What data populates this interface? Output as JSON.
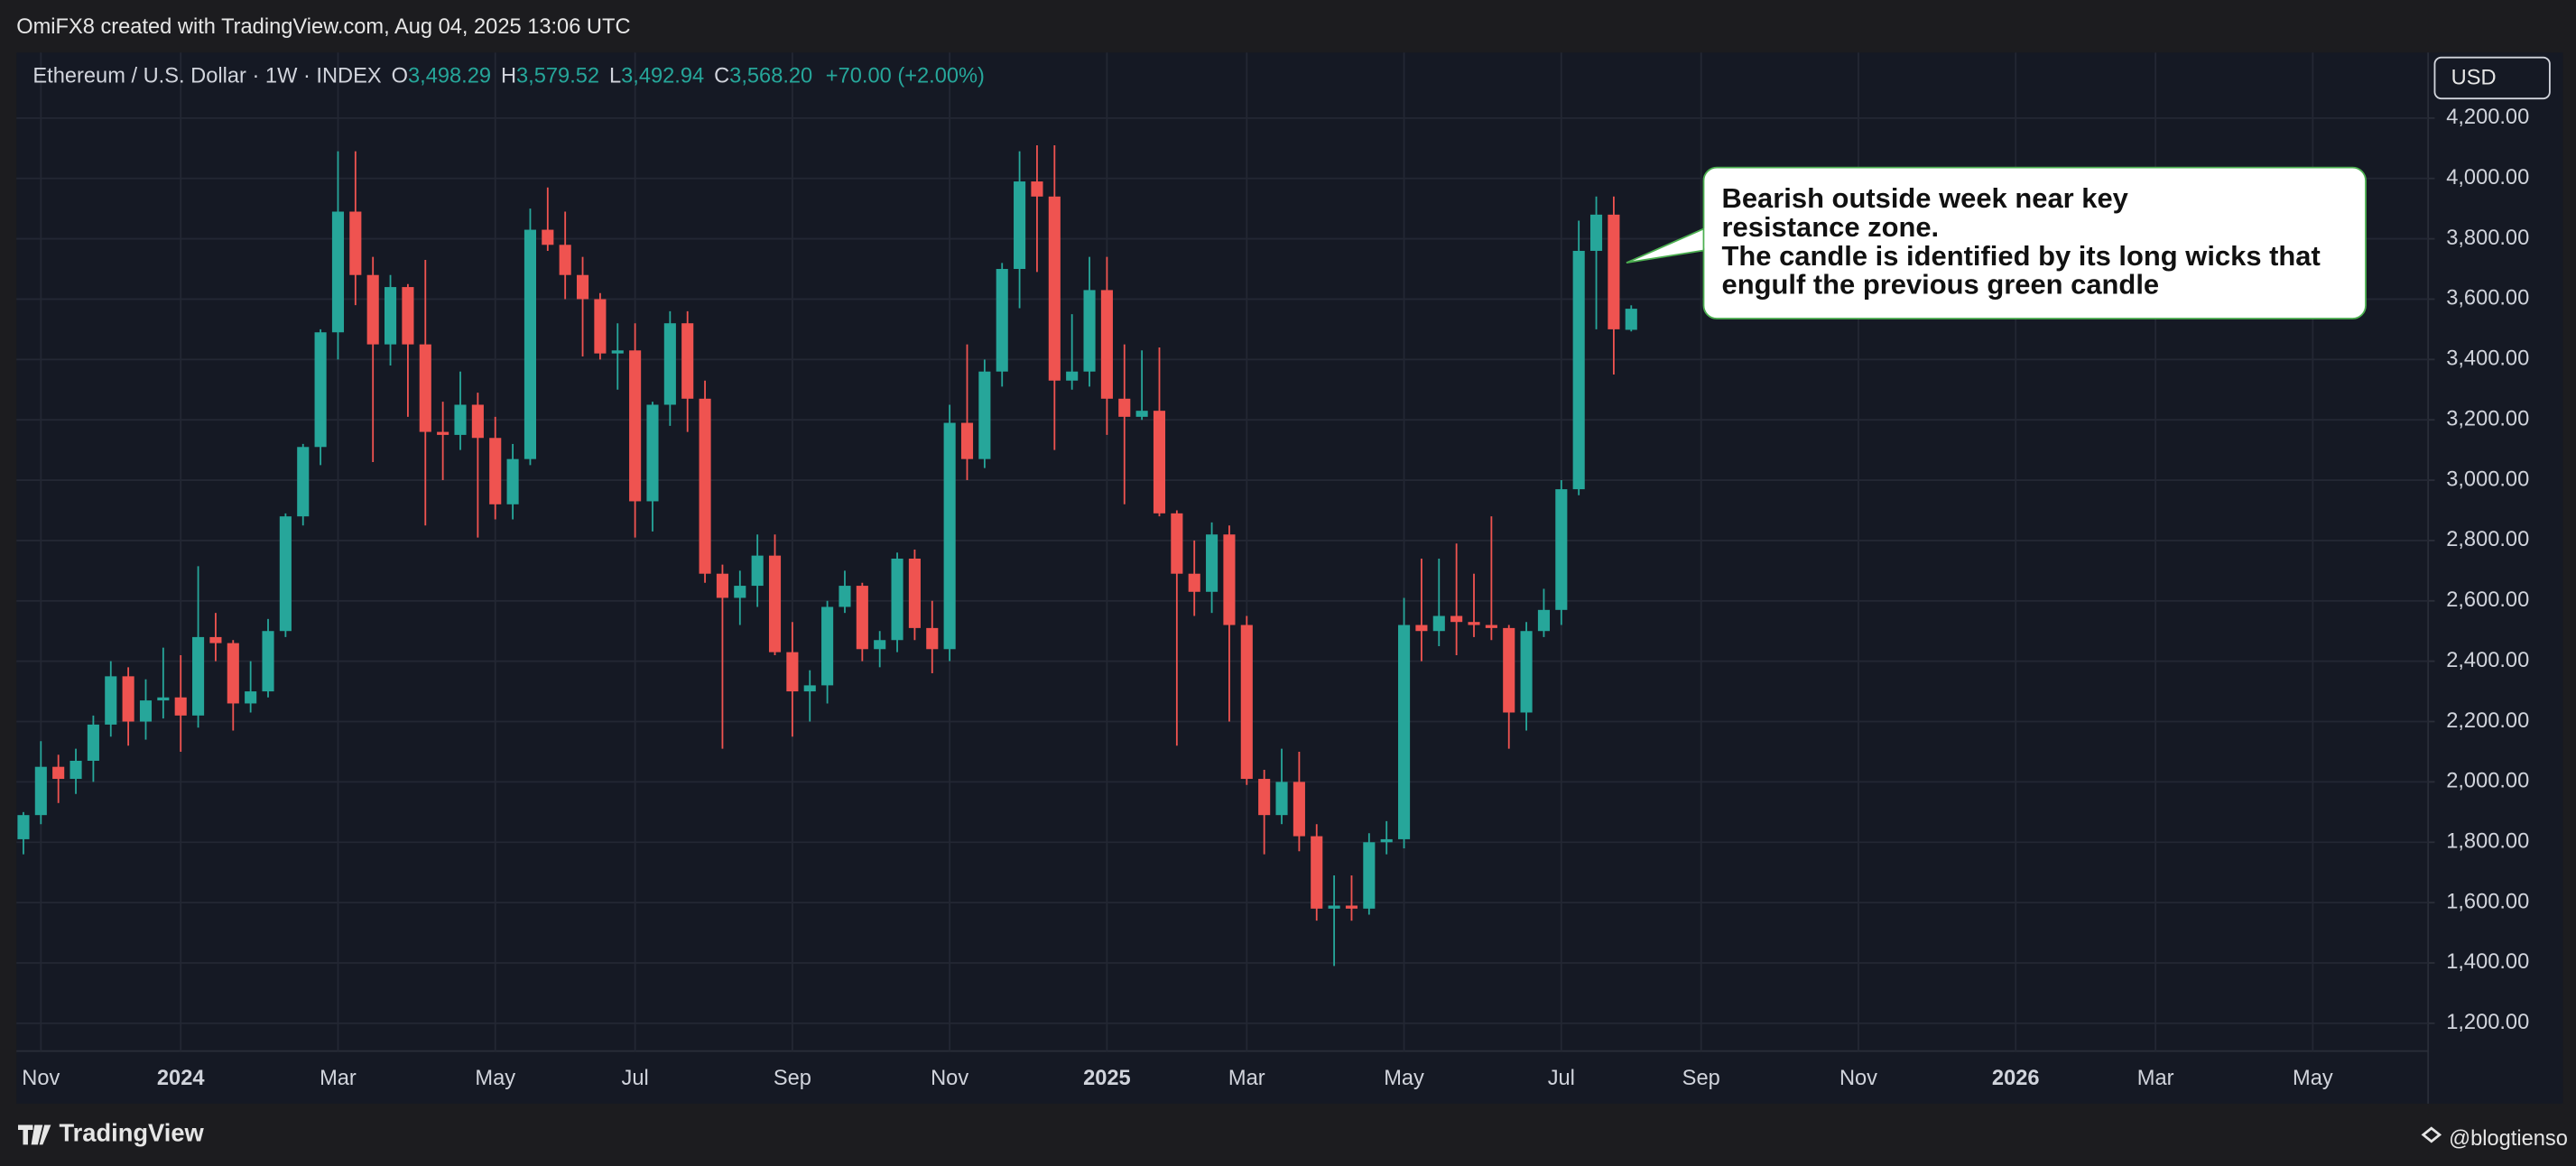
{
  "header": {
    "credit": "OmiFX8 created with TradingView.com, Aug 04, 2025 13:06 UTC"
  },
  "footer": {
    "brand": "TradingView",
    "watermark": "@blogtienso"
  },
  "chart_data": {
    "type": "candlestick",
    "symbol": "Ethereum / U.S. Dollar · 1W · INDEX",
    "ohlc_legend": [
      {
        "key": "O",
        "label": "3,498.29"
      },
      {
        "key": "H",
        "label": "3,579.52"
      },
      {
        "key": "L",
        "label": "3,492.94"
      },
      {
        "key": "C",
        "label": "3,568.20"
      }
    ],
    "change": "+70.00 (+2.00%)",
    "currency": "USD",
    "up_color": "#26a69a",
    "down_color": "#ef5350",
    "grid": true,
    "open": [
      1810,
      1890,
      2050,
      2010,
      2070,
      2190,
      2350,
      2200,
      2270,
      2280,
      2220,
      2480,
      2460,
      2260,
      2300,
      2500,
      2880,
      3110,
      3490,
      3890,
      3680,
      3450,
      3640,
      3450,
      3160,
      3150,
      3250,
      3140,
      2920,
      3070,
      3830,
      3780,
      3680,
      3600,
      3420,
      3430,
      2930,
      3250,
      3520,
      3270,
      2690,
      2610,
      2650,
      2750,
      2430,
      2300,
      2320,
      2580,
      2650,
      2440,
      2470,
      2740,
      2510,
      2440,
      3190,
      3070,
      3360,
      3700,
      3990,
      3940,
      3330,
      3360,
      3630,
      3270,
      3210,
      3230,
      2890,
      2690,
      2630,
      2820,
      2520,
      2010,
      1890,
      2000,
      1820,
      1580,
      1590,
      1580,
      1800,
      1810,
      2520,
      2500,
      2550,
      2530,
      2520,
      2510,
      2230,
      2500,
      2570,
      2970,
      3760,
      3880,
      3498.29
    ],
    "high": [
      1900,
      2135,
      2090,
      2110,
      2220,
      2400,
      2380,
      2340,
      2445,
      2420,
      2715,
      2560,
      2470,
      2400,
      2540,
      2890,
      3120,
      3500,
      4090,
      4090,
      3740,
      3680,
      3650,
      3730,
      3260,
      3360,
      3290,
      3210,
      3120,
      3900,
      3970,
      3890,
      3740,
      3620,
      3520,
      3520,
      3260,
      3560,
      3560,
      3330,
      2720,
      2700,
      2820,
      2820,
      2530,
      2370,
      2600,
      2700,
      2660,
      2500,
      2760,
      2770,
      2600,
      3250,
      3450,
      3400,
      3720,
      4090,
      4110,
      4110,
      3550,
      3740,
      3740,
      3450,
      3430,
      3440,
      2900,
      2800,
      2860,
      2850,
      2550,
      2040,
      2110,
      2100,
      1860,
      1690,
      1690,
      1830,
      1870,
      2610,
      2740,
      2740,
      2790,
      2690,
      2880,
      2520,
      2530,
      2640,
      3000,
      3860,
      3940,
      3940,
      3579.52
    ],
    "low": [
      1760,
      1860,
      1930,
      1960,
      2000,
      2150,
      2120,
      2140,
      2210,
      2100,
      2180,
      2400,
      2170,
      2230,
      2280,
      2480,
      2850,
      3050,
      3400,
      3580,
      3060,
      3380,
      3210,
      2850,
      3000,
      3100,
      2810,
      2870,
      2870,
      3050,
      3760,
      3600,
      3410,
      3400,
      3300,
      2810,
      2830,
      3180,
      3160,
      2660,
      2110,
      2520,
      2580,
      2420,
      2150,
      2200,
      2260,
      2560,
      2400,
      2380,
      2430,
      2470,
      2360,
      2400,
      3000,
      3040,
      3310,
      3570,
      3690,
      3100,
      3300,
      3310,
      3150,
      2920,
      3200,
      2880,
      2120,
      2550,
      2560,
      2200,
      1990,
      1760,
      1860,
      1770,
      1540,
      1390,
      1540,
      1560,
      1760,
      1780,
      2400,
      2450,
      2420,
      2480,
      2470,
      2110,
      2170,
      2480,
      2520,
      2950,
      3500,
      3350,
      3492.94
    ],
    "close": [
      1890,
      2050,
      2010,
      2070,
      2190,
      2350,
      2200,
      2270,
      2280,
      2220,
      2480,
      2460,
      2260,
      2300,
      2500,
      2880,
      3110,
      3490,
      3890,
      3680,
      3450,
      3640,
      3450,
      3160,
      3150,
      3250,
      3140,
      2920,
      3070,
      3830,
      3780,
      3680,
      3600,
      3420,
      3430,
      2930,
      3250,
      3520,
      3270,
      2690,
      2610,
      2650,
      2750,
      2430,
      2300,
      2320,
      2580,
      2650,
      2440,
      2470,
      2740,
      2510,
      2440,
      3190,
      3070,
      3360,
      3700,
      3990,
      3940,
      3330,
      3360,
      3630,
      3270,
      3210,
      3230,
      2890,
      2690,
      2630,
      2820,
      2520,
      2010,
      1890,
      2000,
      1820,
      1580,
      1590,
      1580,
      1800,
      1810,
      2520,
      2500,
      2550,
      2530,
      2520,
      2510,
      2230,
      2500,
      2570,
      2970,
      3760,
      3880,
      3500,
      3568.2
    ],
    "xlim": [
      -0.4,
      137.6
    ],
    "xticks": [
      {
        "value": 1,
        "label": "Nov"
      },
      {
        "value": 9,
        "label": "2024"
      },
      {
        "value": 18,
        "label": "Mar"
      },
      {
        "value": 27,
        "label": "May"
      },
      {
        "value": 35,
        "label": "Jul"
      },
      {
        "value": 44,
        "label": "Sep"
      },
      {
        "value": 53,
        "label": "Nov"
      },
      {
        "value": 62,
        "label": "2025"
      },
      {
        "value": 70,
        "label": "Mar"
      },
      {
        "value": 79,
        "label": "May"
      },
      {
        "value": 88,
        "label": "Jul"
      },
      {
        "value": 96,
        "label": "Sep"
      },
      {
        "value": 105,
        "label": "Nov"
      },
      {
        "value": 114,
        "label": "2026"
      },
      {
        "value": 122,
        "label": "Mar"
      },
      {
        "value": 131,
        "label": "May"
      }
    ],
    "ylim": [
      1108,
      4390
    ],
    "yticks": [
      {
        "value": 1200,
        "label": "1,200.00"
      },
      {
        "value": 1400,
        "label": "1,400.00"
      },
      {
        "value": 1600,
        "label": "1,600.00"
      },
      {
        "value": 1800,
        "label": "1,800.00"
      },
      {
        "value": 2000,
        "label": "2,000.00"
      },
      {
        "value": 2200,
        "label": "2,200.00"
      },
      {
        "value": 2400,
        "label": "2,400.00"
      },
      {
        "value": 2600,
        "label": "2,600.00"
      },
      {
        "value": 2800,
        "label": "2,800.00"
      },
      {
        "value": 3000,
        "label": "3,000.00"
      },
      {
        "value": 3200,
        "label": "3,200.00"
      },
      {
        "value": 3400,
        "label": "3,400.00"
      },
      {
        "value": 3600,
        "label": "3,600.00"
      },
      {
        "value": 3800,
        "label": "3,800.00"
      },
      {
        "value": 4000,
        "label": "4,000.00"
      },
      {
        "value": 4200,
        "label": "4,200.00"
      }
    ],
    "annotation": [
      "Bearish outside week near key",
      "resistance zone.",
      "The candle is identified by its long wicks that",
      "engulf the previous green candle"
    ]
  }
}
